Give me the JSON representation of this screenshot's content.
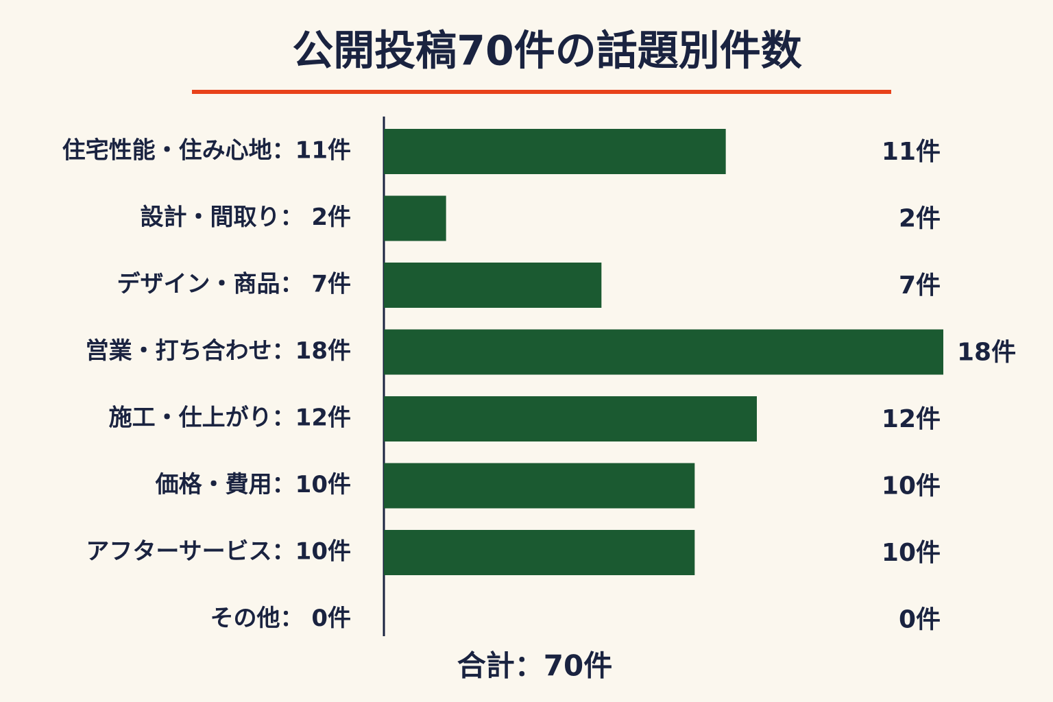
{
  "chart_data": {
    "type": "bar",
    "orientation": "horizontal",
    "title": "公開投稿70件の話題別件数",
    "categories": [
      "住宅性能・住み心地：11件",
      "設計・間取り： 2件",
      "デザイン・商品： 7件",
      "営業・打ち合わせ：18件",
      "施工・仕上がり：12件",
      "価格・費用：10件",
      "アフターサービス：10件",
      "その他： 0件"
    ],
    "values": [
      11,
      2,
      7,
      18,
      12,
      10,
      10,
      0
    ],
    "value_labels": [
      "11件",
      "2件",
      "7件",
      "18件",
      "12件",
      "10件",
      "10件",
      "0件"
    ],
    "color": "#1b5a31",
    "xlim": [
      0,
      18
    ],
    "total_label": "合計：70件"
  }
}
